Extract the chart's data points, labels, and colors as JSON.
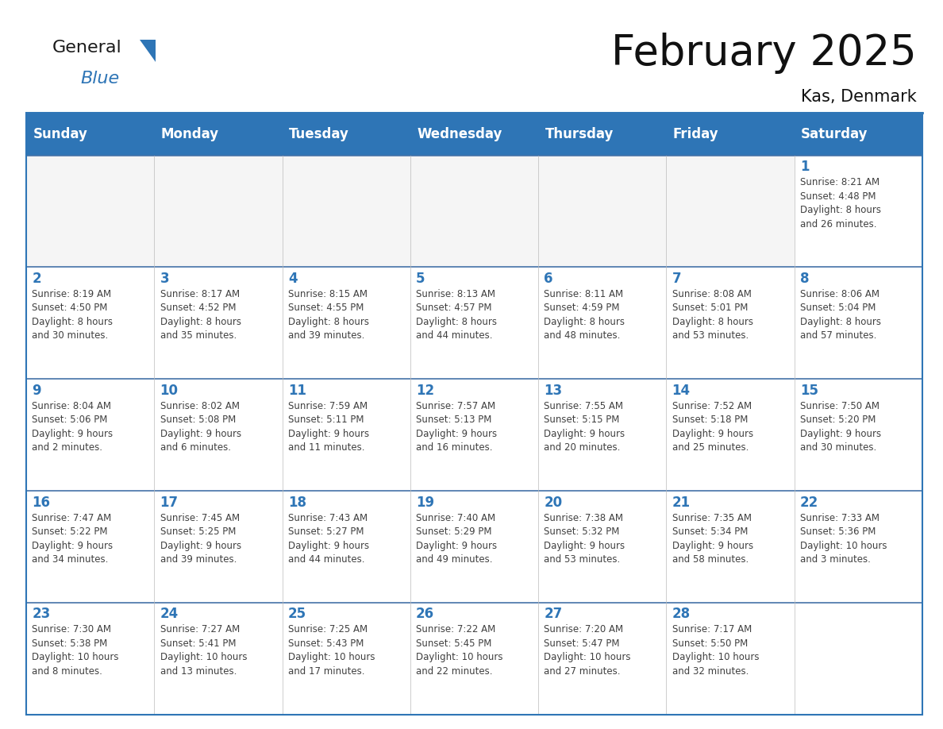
{
  "title": "February 2025",
  "subtitle": "Kas, Denmark",
  "header_bg": "#2E75B6",
  "header_text_color": "#FFFFFF",
  "border_color": "#2E75B6",
  "row_line_color": "#4472a8",
  "day_number_color": "#2E75B6",
  "cell_text_color": "#404040",
  "cell_border_color": "#BBBBBB",
  "days_of_week": [
    "Sunday",
    "Monday",
    "Tuesday",
    "Wednesday",
    "Thursday",
    "Friday",
    "Saturday"
  ],
  "weeks": [
    [
      {
        "day": null,
        "info": ""
      },
      {
        "day": null,
        "info": ""
      },
      {
        "day": null,
        "info": ""
      },
      {
        "day": null,
        "info": ""
      },
      {
        "day": null,
        "info": ""
      },
      {
        "day": null,
        "info": ""
      },
      {
        "day": 1,
        "info": "Sunrise: 8:21 AM\nSunset: 4:48 PM\nDaylight: 8 hours\nand 26 minutes."
      }
    ],
    [
      {
        "day": 2,
        "info": "Sunrise: 8:19 AM\nSunset: 4:50 PM\nDaylight: 8 hours\nand 30 minutes."
      },
      {
        "day": 3,
        "info": "Sunrise: 8:17 AM\nSunset: 4:52 PM\nDaylight: 8 hours\nand 35 minutes."
      },
      {
        "day": 4,
        "info": "Sunrise: 8:15 AM\nSunset: 4:55 PM\nDaylight: 8 hours\nand 39 minutes."
      },
      {
        "day": 5,
        "info": "Sunrise: 8:13 AM\nSunset: 4:57 PM\nDaylight: 8 hours\nand 44 minutes."
      },
      {
        "day": 6,
        "info": "Sunrise: 8:11 AM\nSunset: 4:59 PM\nDaylight: 8 hours\nand 48 minutes."
      },
      {
        "day": 7,
        "info": "Sunrise: 8:08 AM\nSunset: 5:01 PM\nDaylight: 8 hours\nand 53 minutes."
      },
      {
        "day": 8,
        "info": "Sunrise: 8:06 AM\nSunset: 5:04 PM\nDaylight: 8 hours\nand 57 minutes."
      }
    ],
    [
      {
        "day": 9,
        "info": "Sunrise: 8:04 AM\nSunset: 5:06 PM\nDaylight: 9 hours\nand 2 minutes."
      },
      {
        "day": 10,
        "info": "Sunrise: 8:02 AM\nSunset: 5:08 PM\nDaylight: 9 hours\nand 6 minutes."
      },
      {
        "day": 11,
        "info": "Sunrise: 7:59 AM\nSunset: 5:11 PM\nDaylight: 9 hours\nand 11 minutes."
      },
      {
        "day": 12,
        "info": "Sunrise: 7:57 AM\nSunset: 5:13 PM\nDaylight: 9 hours\nand 16 minutes."
      },
      {
        "day": 13,
        "info": "Sunrise: 7:55 AM\nSunset: 5:15 PM\nDaylight: 9 hours\nand 20 minutes."
      },
      {
        "day": 14,
        "info": "Sunrise: 7:52 AM\nSunset: 5:18 PM\nDaylight: 9 hours\nand 25 minutes."
      },
      {
        "day": 15,
        "info": "Sunrise: 7:50 AM\nSunset: 5:20 PM\nDaylight: 9 hours\nand 30 minutes."
      }
    ],
    [
      {
        "day": 16,
        "info": "Sunrise: 7:47 AM\nSunset: 5:22 PM\nDaylight: 9 hours\nand 34 minutes."
      },
      {
        "day": 17,
        "info": "Sunrise: 7:45 AM\nSunset: 5:25 PM\nDaylight: 9 hours\nand 39 minutes."
      },
      {
        "day": 18,
        "info": "Sunrise: 7:43 AM\nSunset: 5:27 PM\nDaylight: 9 hours\nand 44 minutes."
      },
      {
        "day": 19,
        "info": "Sunrise: 7:40 AM\nSunset: 5:29 PM\nDaylight: 9 hours\nand 49 minutes."
      },
      {
        "day": 20,
        "info": "Sunrise: 7:38 AM\nSunset: 5:32 PM\nDaylight: 9 hours\nand 53 minutes."
      },
      {
        "day": 21,
        "info": "Sunrise: 7:35 AM\nSunset: 5:34 PM\nDaylight: 9 hours\nand 58 minutes."
      },
      {
        "day": 22,
        "info": "Sunrise: 7:33 AM\nSunset: 5:36 PM\nDaylight: 10 hours\nand 3 minutes."
      }
    ],
    [
      {
        "day": 23,
        "info": "Sunrise: 7:30 AM\nSunset: 5:38 PM\nDaylight: 10 hours\nand 8 minutes."
      },
      {
        "day": 24,
        "info": "Sunrise: 7:27 AM\nSunset: 5:41 PM\nDaylight: 10 hours\nand 13 minutes."
      },
      {
        "day": 25,
        "info": "Sunrise: 7:25 AM\nSunset: 5:43 PM\nDaylight: 10 hours\nand 17 minutes."
      },
      {
        "day": 26,
        "info": "Sunrise: 7:22 AM\nSunset: 5:45 PM\nDaylight: 10 hours\nand 22 minutes."
      },
      {
        "day": 27,
        "info": "Sunrise: 7:20 AM\nSunset: 5:47 PM\nDaylight: 10 hours\nand 27 minutes."
      },
      {
        "day": 28,
        "info": "Sunrise: 7:17 AM\nSunset: 5:50 PM\nDaylight: 10 hours\nand 32 minutes."
      },
      {
        "day": null,
        "info": ""
      }
    ]
  ],
  "logo_general_color": "#1a1a1a",
  "logo_blue_color": "#2E75B6",
  "title_fontsize": 38,
  "subtitle_fontsize": 15,
  "header_fontsize": 12,
  "day_number_fontsize": 12,
  "cell_text_fontsize": 8.5
}
